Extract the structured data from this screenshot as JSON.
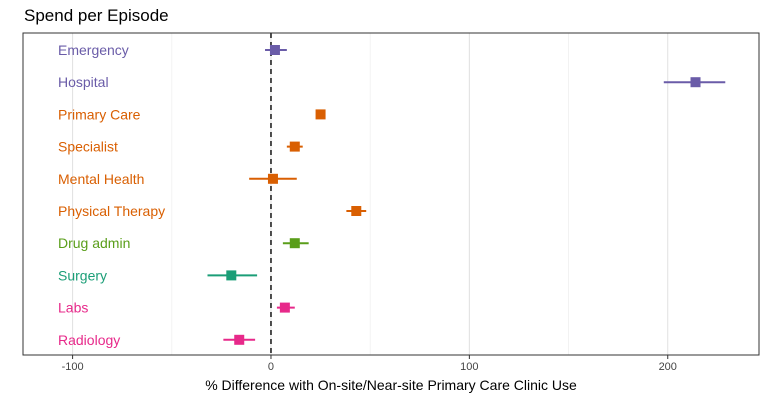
{
  "chart_data": {
    "type": "scatter",
    "subtype": "forest-plot-with-error-bars",
    "title": "Spend per Episode",
    "xlabel": "% Difference with On-site/Near-site Primary Care Clinic Use",
    "ylabel": "",
    "xlim": [
      -125,
      246
    ],
    "xticks": [
      -100,
      0,
      100,
      200
    ],
    "xtick_labels": [
      "-100",
      "0",
      "100",
      "200"
    ],
    "grid": {
      "vertical_major": true,
      "vertical_minor": true,
      "horizontal": false
    },
    "reference_line": {
      "x": 0,
      "style": "dashed",
      "color": "#222222"
    },
    "legend": "none",
    "categories": [
      {
        "label": "Emergency",
        "estimate": 2,
        "ci": [
          -3,
          8
        ],
        "color": "#6a5ca8"
      },
      {
        "label": "Hospital",
        "estimate": 214,
        "ci": [
          198,
          229
        ],
        "color": "#6a5ca8"
      },
      {
        "label": "Primary Care",
        "estimate": 25,
        "ci": [
          24,
          26
        ],
        "color": "#d95f02"
      },
      {
        "label": "Specialist",
        "estimate": 12,
        "ci": [
          8,
          16
        ],
        "color": "#d95f02"
      },
      {
        "label": "Mental Health",
        "estimate": 1,
        "ci": [
          -11,
          13
        ],
        "color": "#d95f02"
      },
      {
        "label": "Physical Therapy",
        "estimate": 43,
        "ci": [
          38,
          48
        ],
        "color": "#d95f02"
      },
      {
        "label": "Drug admin",
        "estimate": 12,
        "ci": [
          6,
          19
        ],
        "color": "#5a9e1a"
      },
      {
        "label": "Surgery",
        "estimate": -20,
        "ci": [
          -32,
          -7
        ],
        "color": "#1b9e77"
      },
      {
        "label": "Labs",
        "estimate": 7,
        "ci": [
          3,
          12
        ],
        "color": "#e7298a"
      },
      {
        "label": "Radiology",
        "estimate": -16,
        "ci": [
          -24,
          -8
        ],
        "color": "#e7298a"
      }
    ]
  }
}
